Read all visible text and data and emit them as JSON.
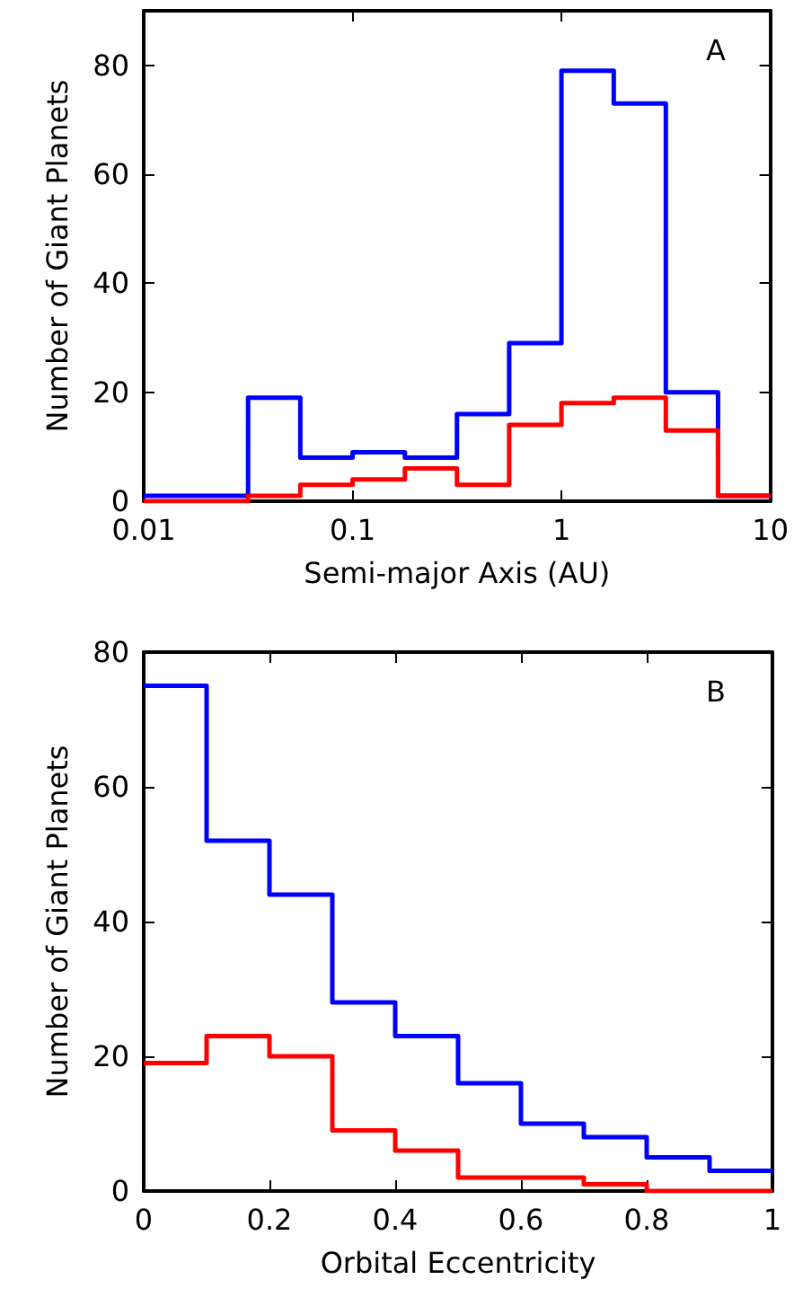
{
  "chart_data": [
    {
      "type": "histogram",
      "xlabel": "Semi-major Axis (AU)",
      "ylabel": "Number of Giant Planets",
      "annotations": [
        "A"
      ],
      "log": "x",
      "bins": [
        0.01,
        0.0178,
        0.0316,
        0.0562,
        0.1,
        0.178,
        0.316,
        0.562,
        1,
        1.78,
        3.16,
        5.62,
        10
      ],
      "series": [
        {
          "color": "#0000ff",
          "values": [
            1,
            1,
            19,
            8,
            9,
            8,
            16,
            29,
            79,
            73,
            20,
            1
          ]
        },
        {
          "color": "#ff0000",
          "values": [
            0,
            0,
            1,
            3,
            4,
            6,
            3,
            14,
            18,
            19,
            13,
            1
          ]
        }
      ],
      "xlim": [
        0.01,
        10
      ],
      "xticks": [
        0.01,
        0.1,
        1,
        10
      ],
      "ylim": [
        0,
        90
      ],
      "yticks": [
        0,
        20,
        40,
        60,
        80
      ],
      "grid": false
    },
    {
      "type": "histogram",
      "xlabel": "Orbital Eccentricity",
      "ylabel": "Number of Giant Planets",
      "annotations": [
        "B"
      ],
      "bins": [
        0,
        0.1,
        0.2,
        0.3,
        0.4,
        0.5,
        0.6,
        0.7,
        0.8,
        0.9,
        1
      ],
      "series": [
        {
          "color": "#0000ff",
          "values": [
            75,
            52,
            44,
            28,
            23,
            16,
            10,
            8,
            5,
            3
          ]
        },
        {
          "color": "#ff0000",
          "values": [
            19,
            23,
            20,
            9,
            6,
            2,
            2,
            1,
            0,
            0
          ]
        }
      ],
      "xlim": [
        0,
        1
      ],
      "xticks": [
        0,
        0.2,
        0.4,
        0.6,
        0.8,
        1
      ],
      "ylim": [
        0,
        80
      ],
      "yticks": [
        0,
        20,
        40,
        60,
        80
      ],
      "grid": false
    }
  ]
}
